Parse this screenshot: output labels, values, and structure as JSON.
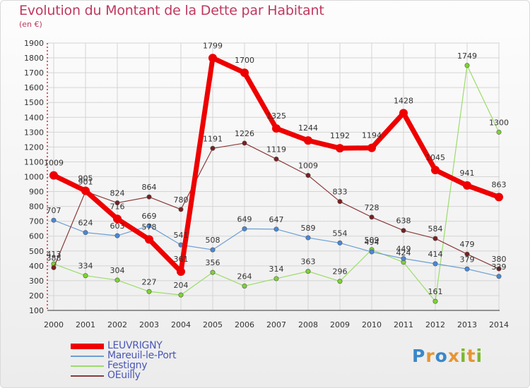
{
  "title": "Evolution du Montant de la Dette par Habitant",
  "unit": "(en €)",
  "logo": {
    "text": "Proxiti",
    "colors": [
      "#3a87c9",
      "#e69532",
      "#3a87c9",
      "#e69532",
      "#7cb82f",
      "#e69532",
      "#7cb82f"
    ]
  },
  "chart_data": {
    "type": "line",
    "title": "Evolution du Montant de la Dette par Habitant",
    "ylabel": "(en €)",
    "xlabel": "",
    "ylim": [
      100,
      1900
    ],
    "yticks": [
      100,
      200,
      300,
      400,
      500,
      600,
      700,
      800,
      900,
      1000,
      1100,
      1200,
      1300,
      1400,
      1500,
      1600,
      1700,
      1800,
      1900
    ],
    "categories": [
      "2000",
      "2001",
      "2002",
      "2003",
      "2004",
      "2005",
      "2006",
      "2007",
      "2008",
      "2009",
      "2010",
      "2011",
      "2012",
      "2013",
      "2014"
    ],
    "grid": true,
    "legend_position": "bottom-left",
    "series": [
      {
        "name": "LEUVRIGNY",
        "color": "#ee0000",
        "width": 7,
        "values": [
          1009,
          905,
          716,
          578,
          361,
          1799,
          1700,
          1325,
          1244,
          1192,
          1194,
          1428,
          1045,
          941,
          863
        ]
      },
      {
        "name": "Mareuil-le-Port",
        "color": "#6a9fd4",
        "width": 1.2,
        "marker": "#4a88d8",
        "values": [
          707,
          624,
          603,
          669,
          541,
          508,
          649,
          647,
          589,
          554,
          494,
          449,
          414,
          379,
          329
        ]
      },
      {
        "name": "Festigny",
        "color": "#9bdc6a",
        "width": 1.2,
        "marker": "#7ed234",
        "values": [
          413,
          334,
          304,
          227,
          204,
          356,
          264,
          314,
          363,
          296,
          509,
          424,
          161,
          1749,
          1300
        ]
      },
      {
        "name": "OEuilly",
        "color": "#8c3a3a",
        "width": 1.2,
        "marker": "#7a1f1f",
        "values": [
          388,
          901,
          824,
          864,
          780,
          1191,
          1226,
          1119,
          1009,
          833,
          728,
          638,
          584,
          479,
          380
        ]
      }
    ],
    "data_labels": [
      [
        "1009",
        "905",
        "716",
        "578",
        "361",
        "1799",
        "1700",
        "1325",
        "1244",
        "1192",
        "1194",
        "1428",
        "1045",
        "941",
        "863"
      ],
      [
        "707",
        "624",
        "603",
        "669",
        "541",
        "508",
        "649",
        "647",
        "589",
        "554",
        "494",
        "449",
        "414",
        "379",
        "329"
      ],
      [
        "413",
        "334",
        "304",
        "227",
        "204",
        "356",
        "264",
        "314",
        "363",
        "296",
        "509",
        "424",
        "161",
        "1749",
        "1300"
      ],
      [
        "388",
        "901",
        "824",
        "864",
        "780",
        "1191",
        "1226",
        "1119",
        "1009",
        "833",
        "728",
        "638",
        "584",
        "479",
        "380"
      ]
    ]
  }
}
